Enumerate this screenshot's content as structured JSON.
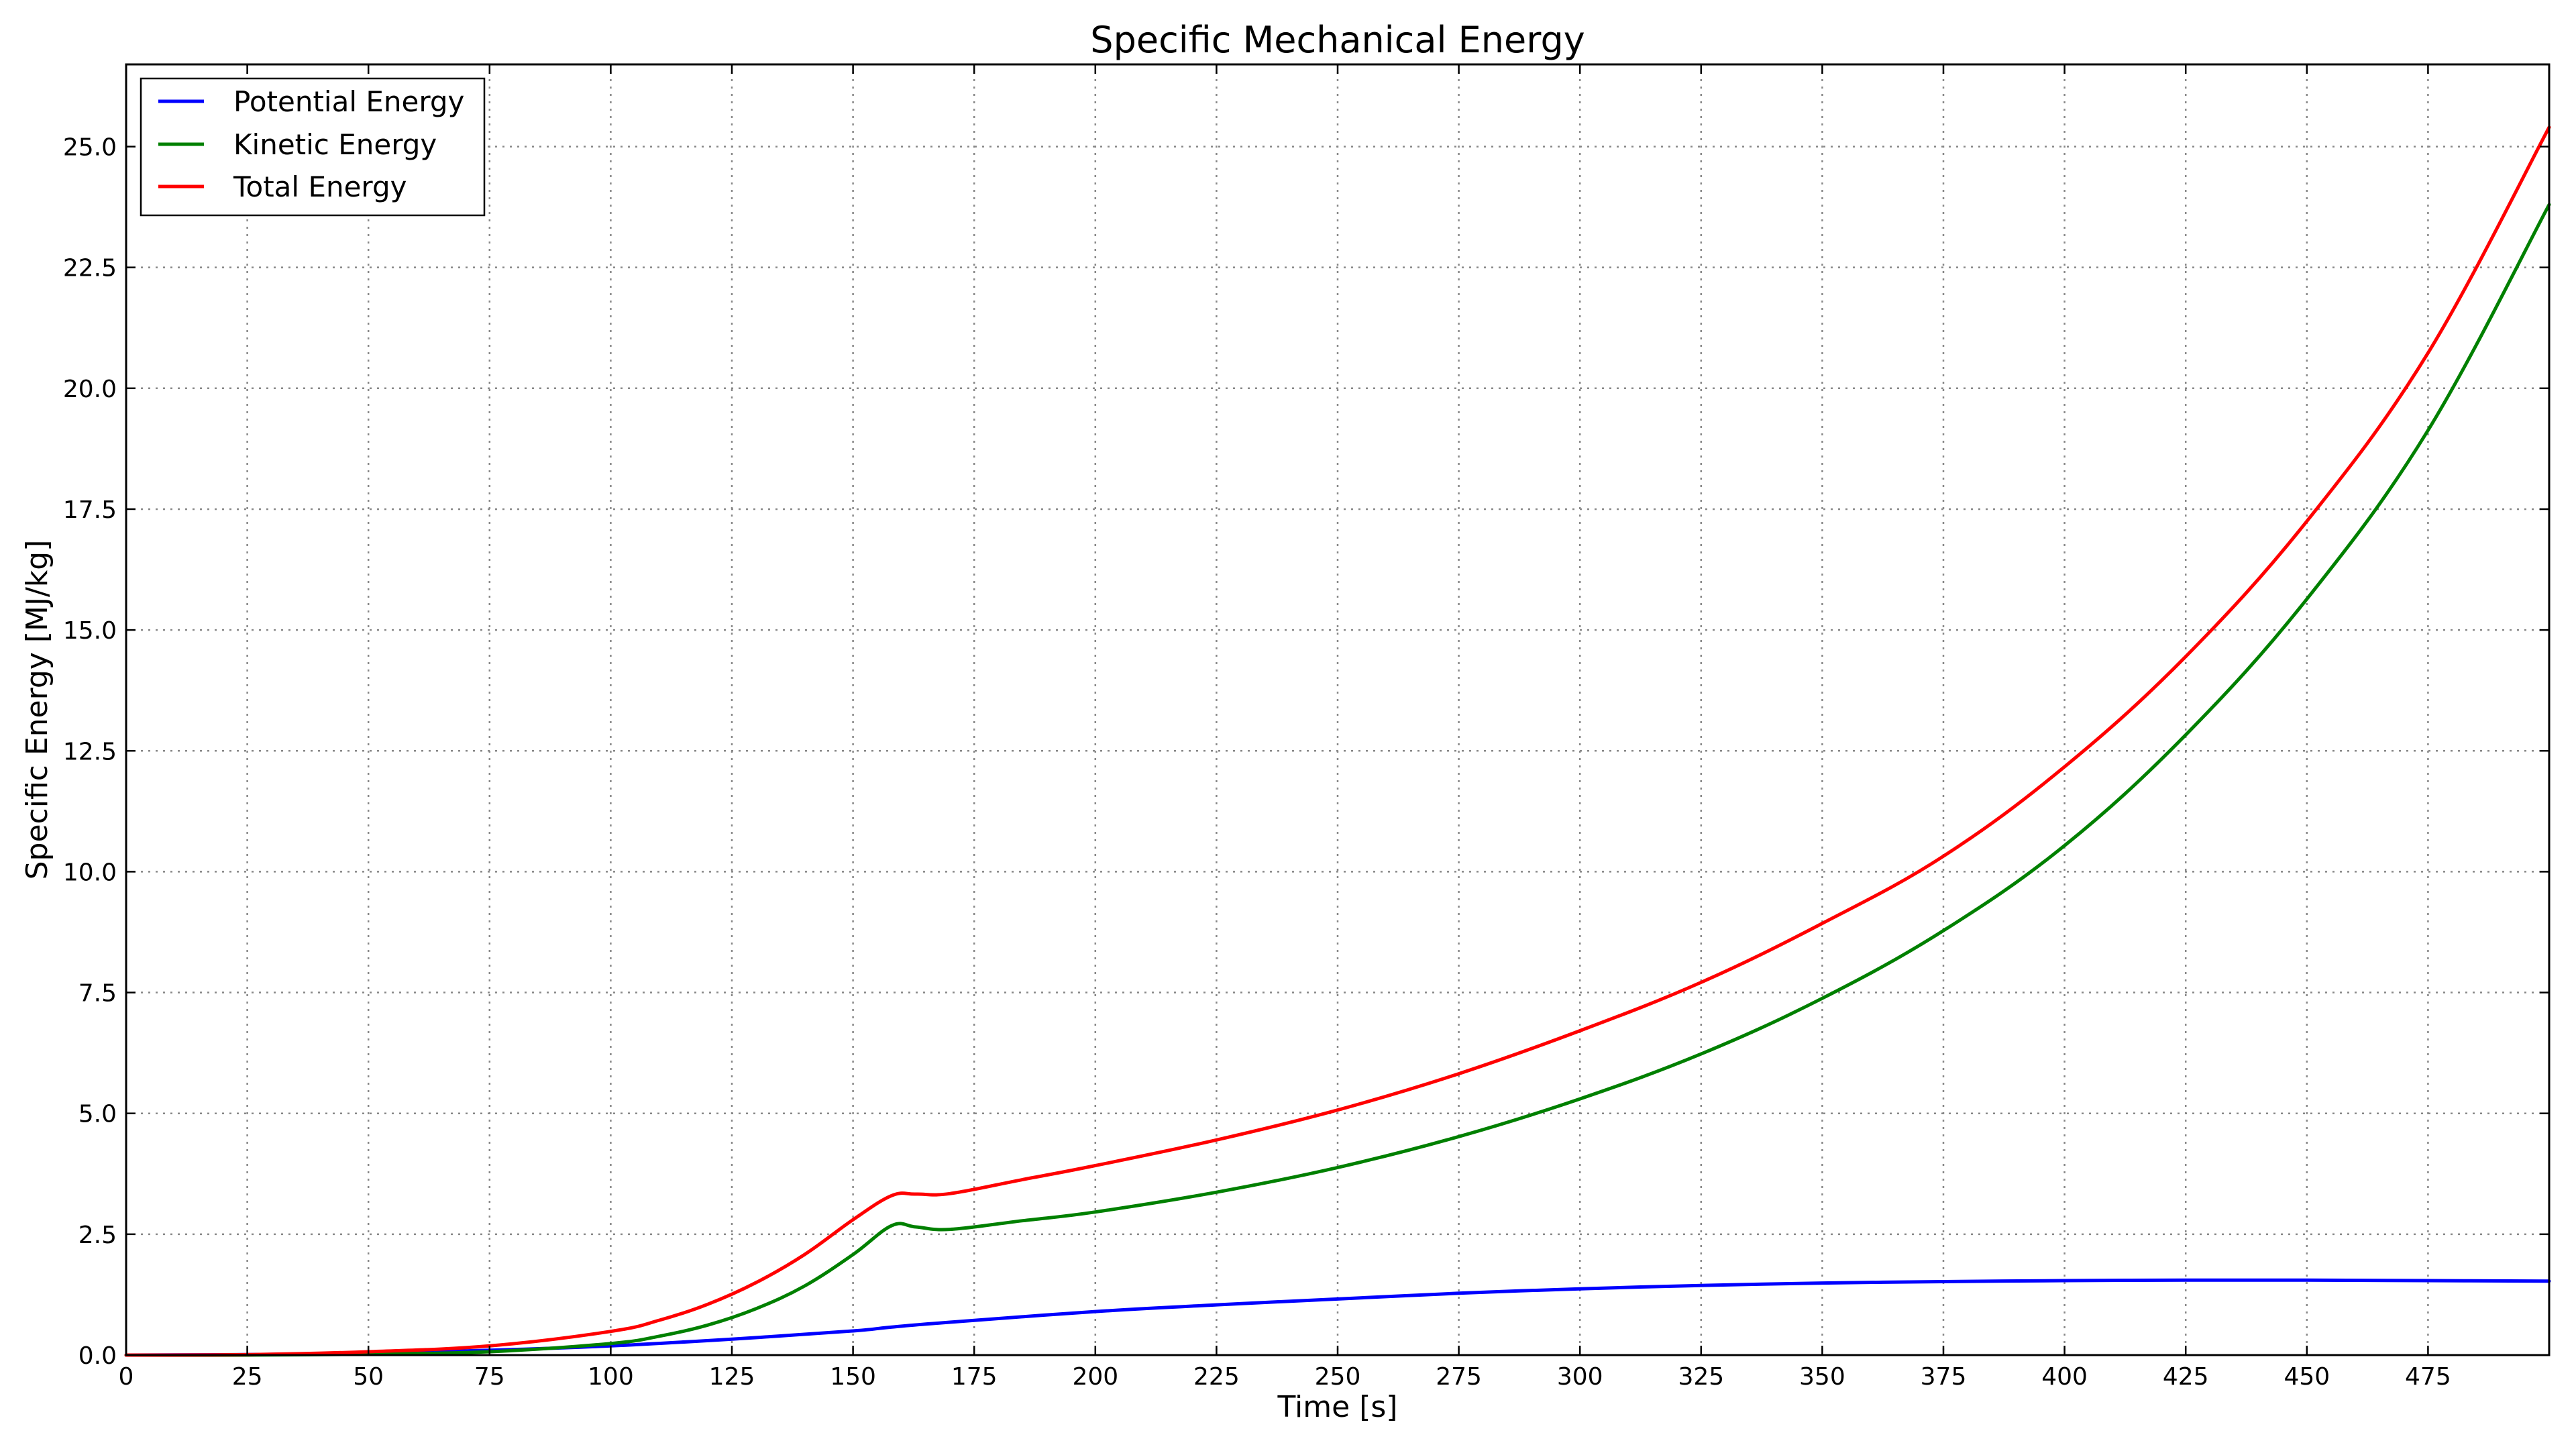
{
  "chart_data": {
    "type": "line",
    "title": "Specific Mechanical Energy",
    "xlabel": "Time [s]",
    "ylabel": "Specific Energy [MJ/kg]",
    "xlim": [
      0,
      500
    ],
    "ylim": [
      0,
      26.7
    ],
    "xticks": [
      0,
      25,
      50,
      75,
      100,
      125,
      150,
      175,
      200,
      225,
      250,
      275,
      300,
      325,
      350,
      375,
      400,
      425,
      450,
      475
    ],
    "yticks": [
      0.0,
      2.5,
      5.0,
      7.5,
      10.0,
      12.5,
      15.0,
      17.5,
      20.0,
      22.5,
      25.0
    ],
    "xtick_labels": [
      "0",
      "25",
      "50",
      "75",
      "100",
      "125",
      "150",
      "175",
      "200",
      "225",
      "250",
      "275",
      "300",
      "325",
      "350",
      "375",
      "400",
      "425",
      "450",
      "475"
    ],
    "ytick_labels": [
      "0.0",
      "2.5",
      "5.0",
      "7.5",
      "10.0",
      "12.5",
      "15.0",
      "17.5",
      "20.0",
      "22.5",
      "25.0"
    ],
    "grid": true,
    "legend_position": "top-left",
    "series": [
      {
        "name": "Potential Energy",
        "color": "#0000ff",
        "x": [
          0,
          25,
          50,
          75,
          100,
          125,
          150,
          158,
          170,
          200,
          225,
          250,
          275,
          300,
          325,
          350,
          375,
          400,
          425,
          450,
          475,
          500
        ],
        "y": [
          0.0,
          0.01,
          0.04,
          0.1,
          0.19,
          0.33,
          0.5,
          0.58,
          0.68,
          0.9,
          1.04,
          1.16,
          1.28,
          1.37,
          1.44,
          1.49,
          1.52,
          1.54,
          1.55,
          1.55,
          1.54,
          1.53
        ]
      },
      {
        "name": "Kinetic Energy",
        "color": "#008000",
        "x": [
          0,
          25,
          50,
          75,
          100,
          110,
          120,
          130,
          140,
          150,
          158,
          163,
          170,
          185,
          200,
          225,
          250,
          275,
          300,
          325,
          350,
          375,
          400,
          425,
          450,
          475,
          500
        ],
        "y": [
          0.0,
          0.0,
          0.02,
          0.07,
          0.24,
          0.39,
          0.62,
          0.96,
          1.43,
          2.08,
          2.68,
          2.65,
          2.6,
          2.78,
          2.96,
          3.37,
          3.88,
          4.52,
          5.3,
          6.23,
          7.38,
          8.78,
          10.54,
          12.83,
          15.64,
          19.13,
          23.8
        ]
      },
      {
        "name": "Total Energy",
        "color": "#ff0000",
        "x": [
          0,
          25,
          50,
          75,
          100,
          110,
          120,
          130,
          140,
          150,
          158,
          163,
          170,
          185,
          200,
          225,
          250,
          275,
          300,
          325,
          350,
          375,
          400,
          425,
          450,
          475,
          500
        ],
        "y": [
          0.0,
          0.01,
          0.07,
          0.19,
          0.49,
          0.72,
          1.05,
          1.5,
          2.08,
          2.8,
          3.3,
          3.33,
          3.34,
          3.63,
          3.92,
          4.45,
          5.07,
          5.82,
          6.71,
          7.71,
          8.93,
          10.32,
          12.17,
          14.45,
          17.25,
          20.73,
          25.4
        ]
      }
    ]
  }
}
